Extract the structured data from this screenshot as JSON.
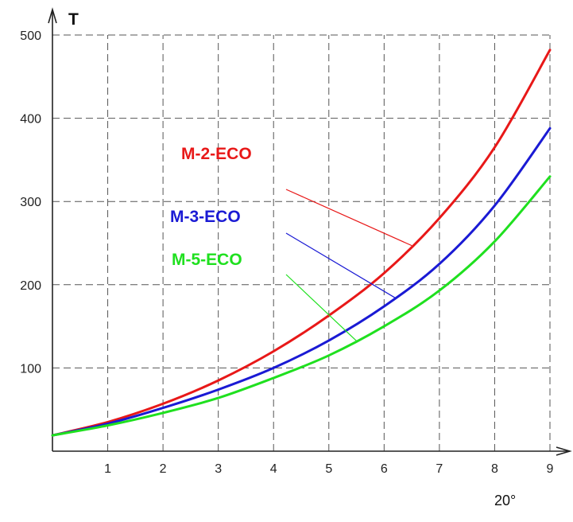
{
  "chart_data": {
    "type": "line",
    "ylabel": "T",
    "xlabel": "",
    "x": [
      0,
      1,
      2,
      3,
      4,
      5,
      6,
      7,
      8,
      9
    ],
    "xticks": [
      1,
      2,
      3,
      4,
      5,
      6,
      7,
      8,
      9
    ],
    "yticks": [
      100,
      200,
      300,
      400,
      500
    ],
    "xlim": [
      0,
      9
    ],
    "ylim": [
      0,
      500
    ],
    "grid": true,
    "annotation": "20°",
    "series": [
      {
        "name": "M-2-ECO",
        "color": "#e81818",
        "values": [
          19,
          35,
          57,
          85,
          120,
          163,
          214,
          280,
          365,
          482
        ]
      },
      {
        "name": "M-3-ECO",
        "color": "#1a1ad4",
        "values": [
          19,
          33,
          52,
          74,
          100,
          133,
          174,
          225,
          295,
          388
        ]
      },
      {
        "name": "M-5-ECO",
        "color": "#1fe01f",
        "values": [
          19,
          31,
          46,
          64,
          88,
          115,
          150,
          193,
          252,
          330
        ]
      }
    ]
  }
}
